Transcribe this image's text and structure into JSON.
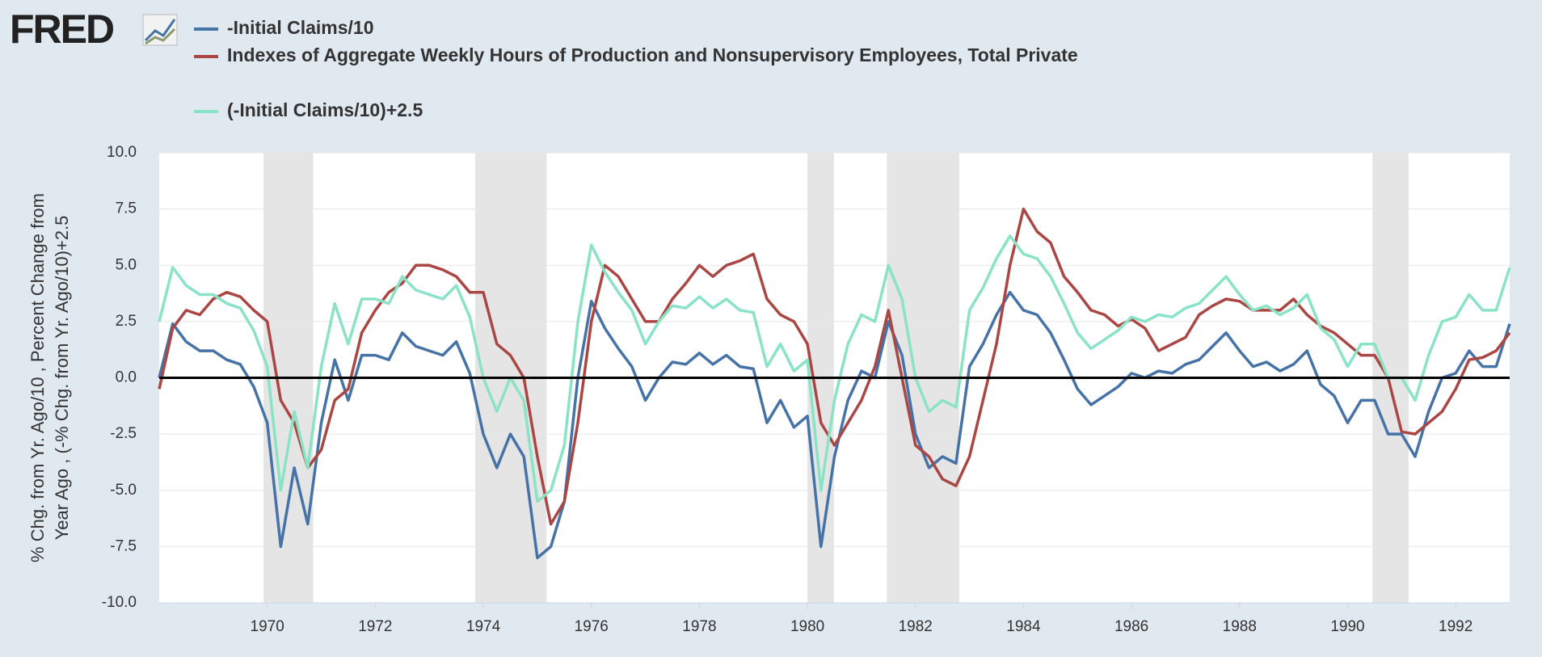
{
  "logo": "FRED",
  "chart_data": {
    "type": "line",
    "ylabel": [
      "% Chg. from Yr. Ago/10 , Percent Change from",
      "Year Ago , (-% Chg. from Yr. Ago/10)+2.5"
    ],
    "x": [
      1968,
      1968.25,
      1968.5,
      1968.75,
      1969,
      1969.25,
      1969.5,
      1969.75,
      1970,
      1970.25,
      1970.5,
      1970.75,
      1971,
      1971.25,
      1971.5,
      1971.75,
      1972,
      1972.25,
      1972.5,
      1972.75,
      1973,
      1973.25,
      1973.5,
      1973.75,
      1974,
      1974.25,
      1974.5,
      1974.75,
      1975,
      1975.25,
      1975.5,
      1975.75,
      1976,
      1976.25,
      1976.5,
      1976.75,
      1977,
      1977.25,
      1977.5,
      1977.75,
      1978,
      1978.25,
      1978.5,
      1978.75,
      1979,
      1979.25,
      1979.5,
      1979.75,
      1980,
      1980.25,
      1980.5,
      1980.75,
      1981,
      1981.25,
      1981.5,
      1981.75,
      1982,
      1982.25,
      1982.5,
      1982.75,
      1983,
      1983.25,
      1983.5,
      1983.75,
      1984,
      1984.25,
      1984.5,
      1984.75,
      1985,
      1985.25,
      1985.5,
      1985.75,
      1986,
      1986.25,
      1986.5,
      1986.75,
      1987,
      1987.25,
      1987.5,
      1987.75,
      1988,
      1988.25,
      1988.5,
      1988.75,
      1989,
      1989.25,
      1989.5,
      1989.75,
      1990,
      1990.25,
      1990.5,
      1990.75,
      1991,
      1991.25,
      1991.5,
      1991.75,
      1992,
      1992.25,
      1992.5,
      1992.75,
      1993
    ],
    "series": [
      {
        "name": "-Initial Claims/10",
        "color": "#4572a7",
        "values": [
          0,
          2.4,
          1.6,
          1.2,
          1.2,
          0.8,
          0.6,
          -0.4,
          -2,
          -7.5,
          -4,
          -6.5,
          -2,
          0.8,
          -1,
          1,
          1,
          0.8,
          2,
          1.4,
          1.2,
          1,
          1.6,
          0.2,
          -2.5,
          -4,
          -2.5,
          -3.5,
          -8,
          -7.5,
          -5.5,
          0,
          3.4,
          2.2,
          1.3,
          0.5,
          -1,
          0,
          0.7,
          0.6,
          1.1,
          0.6,
          1,
          0.5,
          0.4,
          -2,
          -1,
          -2.2,
          -1.7,
          -7.5,
          -3.5,
          -1,
          0.3,
          0,
          2.5,
          1,
          -2.5,
          -4,
          -3.5,
          -3.8,
          0.5,
          1.5,
          2.8,
          3.8,
          3,
          2.8,
          2,
          0.8,
          -0.5,
          -1.2,
          -0.8,
          -0.4,
          0.2,
          0,
          0.3,
          0.2,
          0.6,
          0.8,
          1.4,
          2,
          1.2,
          0.5,
          0.7,
          0.3,
          0.6,
          1.2,
          -0.3,
          -0.8,
          -2,
          -1,
          -1,
          -2.5,
          -2.5,
          -3.5,
          -1.5,
          0,
          0.2,
          1.2,
          0.5,
          0.5,
          2.4
        ]
      },
      {
        "name": "Indexes of Aggregate Weekly Hours of Production and Nonsupervisory Employees, Total Private",
        "color": "#aa4643",
        "values": [
          -0.5,
          2.2,
          3,
          2.8,
          3.5,
          3.8,
          3.6,
          3,
          2.5,
          -1,
          -2,
          -4,
          -3.2,
          -1,
          -0.5,
          2,
          3,
          3.8,
          4.2,
          5,
          5,
          4.8,
          4.5,
          3.8,
          3.8,
          1.5,
          1,
          0,
          -3.5,
          -6.5,
          -5.5,
          -2,
          2.5,
          5,
          4.5,
          3.5,
          2.5,
          2.5,
          3.5,
          4.2,
          5,
          4.5,
          5,
          5.2,
          5.5,
          3.5,
          2.8,
          2.5,
          1.5,
          -2,
          -3,
          -2,
          -1,
          0.5,
          3,
          0,
          -3,
          -3.5,
          -4.5,
          -4.8,
          -3.5,
          -1,
          1.5,
          5,
          7.5,
          6.5,
          6,
          4.5,
          3.8,
          3,
          2.8,
          2.3,
          2.6,
          2.2,
          1.2,
          1.5,
          1.8,
          2.8,
          3.2,
          3.5,
          3.4,
          3,
          3,
          3,
          3.5,
          2.8,
          2.3,
          2,
          1.5,
          1,
          1,
          0,
          -2.4,
          -2.5,
          -2,
          -1.5,
          -0.5,
          0.8,
          0.9,
          1.2,
          2
        ]
      },
      {
        "name": "(-Initial Claims/10)+2.5",
        "color": "#89e3c4",
        "values": [
          2.5,
          4.9,
          4.1,
          3.7,
          3.7,
          3.3,
          3.1,
          2.1,
          0.5,
          -5,
          -1.5,
          -4,
          0.5,
          3.3,
          1.5,
          3.5,
          3.5,
          3.3,
          4.5,
          3.9,
          3.7,
          3.5,
          4.1,
          2.7,
          0,
          -1.5,
          0,
          -1,
          -5.5,
          -5,
          -3,
          2.5,
          5.9,
          4.7,
          3.8,
          3,
          1.5,
          2.5,
          3.2,
          3.1,
          3.6,
          3.1,
          3.5,
          3,
          2.9,
          0.5,
          1.5,
          0.3,
          0.8,
          -5,
          -1,
          1.5,
          2.8,
          2.5,
          5,
          3.5,
          0,
          -1.5,
          -1,
          -1.3,
          3,
          4,
          5.3,
          6.3,
          5.5,
          5.3,
          4.5,
          3.3,
          2,
          1.3,
          1.7,
          2.1,
          2.7,
          2.5,
          2.8,
          2.7,
          3.1,
          3.3,
          3.9,
          4.5,
          3.7,
          3,
          3.2,
          2.8,
          3.1,
          3.7,
          2.2,
          1.7,
          0.5,
          1.5,
          1.5,
          0,
          0,
          -1,
          1,
          2.5,
          2.7,
          3.7,
          3,
          3,
          4.9
        ]
      }
    ],
    "recessions": [
      [
        1969.93,
        1970.85
      ],
      [
        1973.85,
        1975.17
      ],
      [
        1980,
        1980.49
      ],
      [
        1981.47,
        1982.81
      ],
      [
        1990.46,
        1991.13
      ]
    ],
    "recession_color": "#e5e5e5",
    "xlim": [
      1968,
      1993
    ],
    "xticks": [
      1970,
      1972,
      1974,
      1976,
      1978,
      1980,
      1982,
      1984,
      1986,
      1988,
      1990,
      1992
    ],
    "ylim": [
      -10,
      10
    ],
    "yticks": [
      {
        "value": -10,
        "label": "-10.0"
      },
      -7.5,
      {
        "value": -5,
        "label": "-5.0"
      },
      -2.5,
      {
        "value": 0,
        "label": "0.0"
      },
      2.5,
      {
        "value": 5,
        "label": "5.0"
      },
      7.5,
      {
        "value": 10,
        "label": "10.0"
      }
    ],
    "grid": true
  }
}
